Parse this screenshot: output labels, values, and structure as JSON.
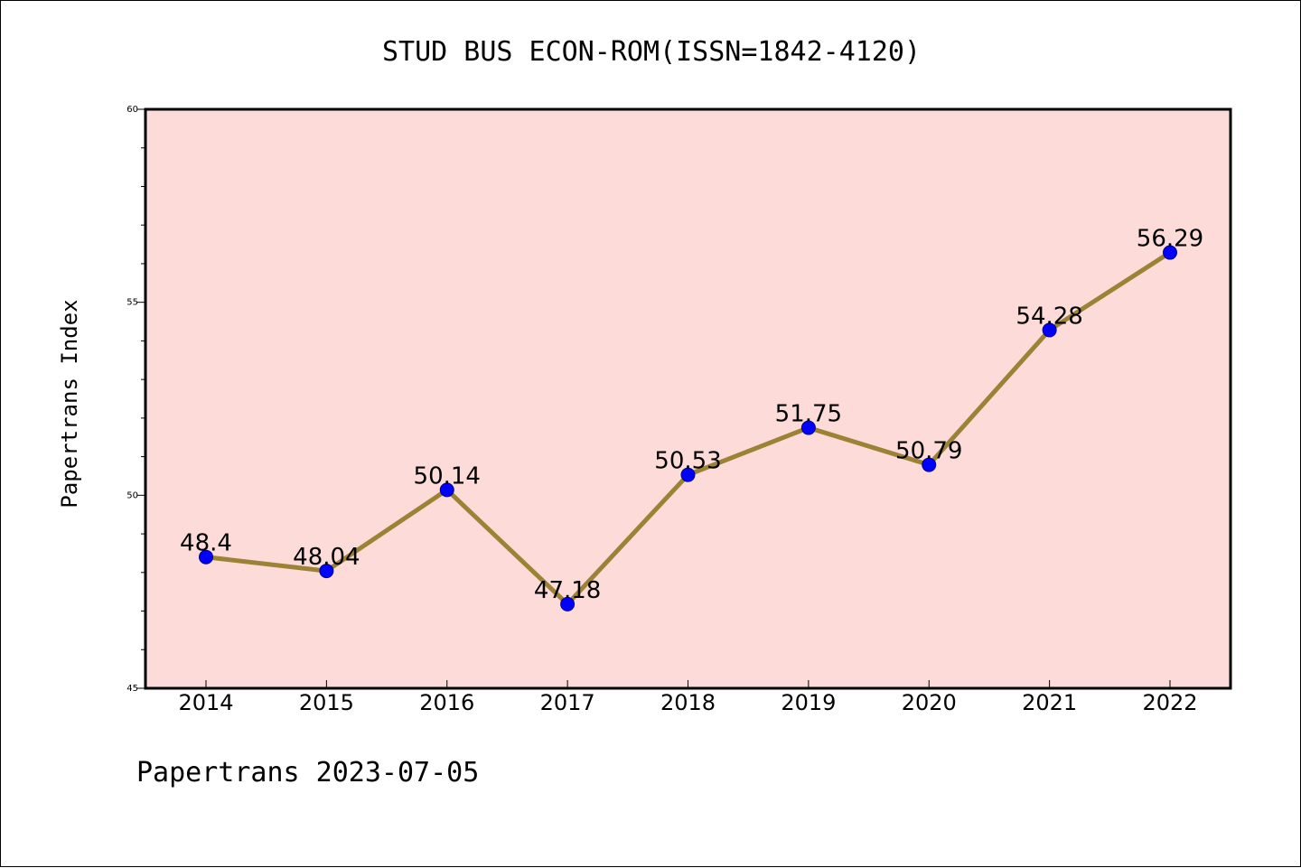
{
  "chart_data": {
    "type": "line",
    "title": "STUD BUS ECON-ROM(ISSN=1842-4120)",
    "xlabel": "",
    "ylabel": "Papertrans Index",
    "categories": [
      "2014",
      "2015",
      "2016",
      "2017",
      "2018",
      "2019",
      "2020",
      "2021",
      "2022"
    ],
    "series": [
      {
        "values": [
          48.4,
          48.04,
          50.14,
          47.18,
          50.53,
          51.75,
          50.79,
          54.28,
          56.29
        ],
        "data_labels": [
          "48.4",
          "48.04",
          "50.14",
          "47.18",
          "50.53",
          "51.75",
          "50.79",
          "54.28",
          "56.29"
        ],
        "line_color": "#9b8235",
        "marker_color": "#0000ff"
      }
    ],
    "ylim": [
      45,
      60
    ],
    "y_major_ticks": [
      45,
      50,
      55,
      60
    ],
    "y_major_tick_labels": [
      "45",
      "50",
      "55",
      "60"
    ],
    "y_minor_tick_step": 1,
    "grid": false,
    "legend": "none",
    "plot_background": "#fddbd8"
  },
  "footer": {
    "text": "Papertrans 2023-07-05"
  }
}
